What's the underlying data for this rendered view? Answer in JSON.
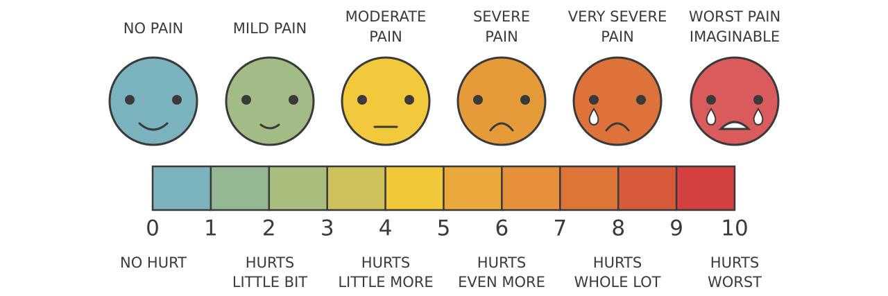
{
  "faces": [
    {
      "label": [
        "NO PAIN"
      ],
      "description": [
        "NO HURT"
      ]
    },
    {
      "label": [
        "MILD PAIN"
      ],
      "description": [
        "HURTS",
        "LITTLE BIT"
      ]
    },
    {
      "label": [
        "MODERATE",
        "PAIN"
      ],
      "description": [
        "HURTS",
        "LITTLE MORE"
      ]
    },
    {
      "label": [
        "SEVERE",
        "PAIN"
      ],
      "description": [
        "HURTS",
        "EVEN MORE"
      ]
    },
    {
      "label": [
        "VERY SEVERE",
        "PAIN"
      ],
      "description": [
        "HURTS",
        "WHOLE LOT"
      ]
    },
    {
      "label": [
        "WORST PAIN",
        "IMAGINABLE"
      ],
      "description": [
        "HURTS",
        "WORST"
      ]
    }
  ],
  "scale": [
    0,
    1,
    2,
    3,
    4,
    5,
    6,
    7,
    8,
    9,
    10
  ]
}
